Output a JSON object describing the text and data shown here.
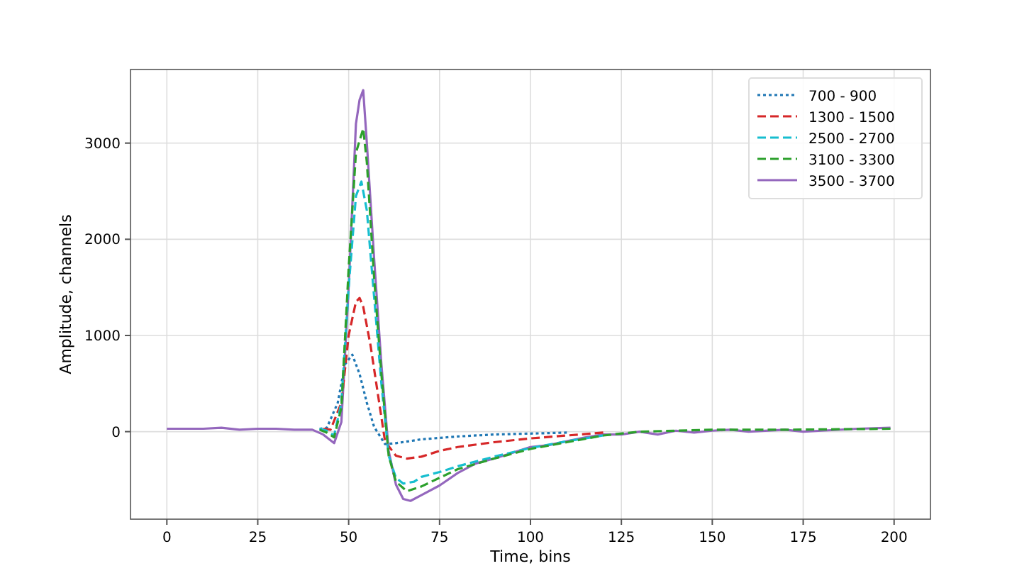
{
  "chart_data": {
    "type": "line",
    "xlabel": "Time, bins",
    "ylabel": "Amplitude, channels",
    "xlim": [
      -10,
      210
    ],
    "ylim": [
      -910,
      3765
    ],
    "xticks": [
      0,
      25,
      50,
      75,
      100,
      125,
      150,
      175,
      200
    ],
    "yticks": [
      0,
      1000,
      2000,
      3000
    ],
    "grid": true,
    "legend": "top right",
    "series": [
      {
        "name": "700 - 900",
        "color": "#1f77b4",
        "line_style": "dotted",
        "x": [
          42,
          44,
          47,
          49,
          51,
          53,
          55,
          57,
          60,
          63,
          70,
          80,
          90,
          100,
          110
        ],
        "values": [
          30,
          40,
          300,
          700,
          800,
          600,
          300,
          50,
          -130,
          -120,
          -80,
          -50,
          -30,
          -20,
          -10
        ]
      },
      {
        "name": "1300 - 1500",
        "color": "#d62728",
        "line_style": "dashed",
        "x": [
          43,
          45,
          48,
          50,
          52,
          53,
          54,
          56,
          58,
          60,
          63,
          66,
          70,
          75,
          80,
          90,
          100,
          110,
          120
        ],
        "values": [
          30,
          20,
          300,
          1000,
          1350,
          1390,
          1300,
          900,
          400,
          -100,
          -250,
          -280,
          -260,
          -200,
          -160,
          -110,
          -70,
          -40,
          -10
        ]
      },
      {
        "name": "2500 - 2700",
        "color": "#17becf",
        "line_style": "dashed",
        "x": [
          42,
          44,
          46,
          48,
          50,
          52,
          53.5,
          55,
          57,
          59,
          61,
          63,
          65,
          68,
          70,
          75,
          80,
          90,
          100,
          110,
          120
        ],
        "values": [
          30,
          10,
          -40,
          300,
          1500,
          2450,
          2600,
          2300,
          1400,
          500,
          -250,
          -480,
          -540,
          -520,
          -470,
          -420,
          -360,
          -260,
          -170,
          -100,
          -40
        ]
      },
      {
        "name": "3100 - 3300",
        "color": "#2ca02c",
        "line_style": "dashed",
        "x": [
          42,
          44,
          46,
          48,
          50,
          52,
          54,
          55,
          57,
          59,
          61,
          63,
          66,
          70,
          75,
          80,
          90,
          100,
          110,
          120,
          130,
          150,
          170,
          199
        ],
        "values": [
          20,
          -10,
          -60,
          250,
          1700,
          2900,
          3150,
          2800,
          1600,
          600,
          -250,
          -520,
          -620,
          -570,
          -480,
          -390,
          -280,
          -180,
          -110,
          -40,
          0,
          20,
          20,
          30
        ]
      },
      {
        "name": "3500 - 3700",
        "color": "#9467bd",
        "line_style": "solid",
        "x": [
          0,
          5,
          10,
          15,
          20,
          25,
          30,
          35,
          40,
          43,
          46,
          48,
          50,
          52,
          53,
          54,
          55,
          57,
          59,
          61,
          63,
          65,
          67,
          70,
          75,
          80,
          85,
          90,
          95,
          100,
          105,
          110,
          115,
          120,
          125,
          130,
          135,
          140,
          145,
          150,
          155,
          160,
          170,
          175,
          180,
          190,
          199
        ],
        "values": [
          30,
          30,
          30,
          40,
          20,
          30,
          30,
          20,
          20,
          -30,
          -120,
          100,
          1500,
          3200,
          3450,
          3550,
          3000,
          1800,
          700,
          -200,
          -550,
          -700,
          -720,
          -660,
          -560,
          -430,
          -330,
          -280,
          -220,
          -160,
          -140,
          -100,
          -60,
          -30,
          -30,
          0,
          -30,
          10,
          -10,
          10,
          20,
          0,
          20,
          0,
          10,
          30,
          40
        ]
      }
    ]
  }
}
